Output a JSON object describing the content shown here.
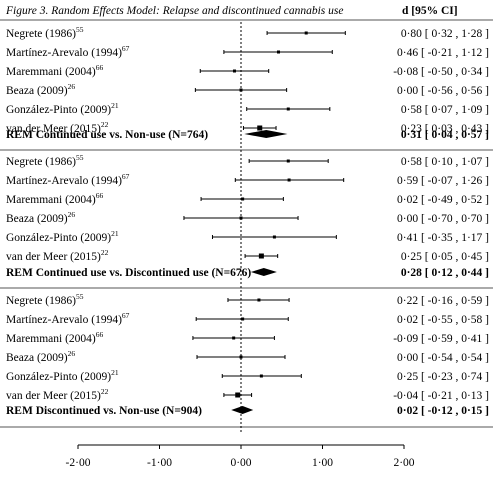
{
  "chart_data": {
    "type": "forest",
    "title": "Figure 3. Random Effects Model: Relapse and discontinued cannabis use",
    "column_header": "d [95% CI]",
    "xlim": [
      -2,
      2
    ],
    "x_ticks": [
      "-2·00",
      "-1·00",
      "0·00",
      "1·00",
      "2·00"
    ],
    "x_tick_values": [
      -2,
      -1,
      0,
      1,
      2
    ],
    "reference_line": 0,
    "groups": [
      {
        "studies": [
          {
            "name": "Negrete (1986)",
            "ref": "55",
            "d": 0.8,
            "lo": 0.32,
            "hi": 1.28,
            "ci_text": "0·80 [  0·32 ,  1·28 ]"
          },
          {
            "name": "Martínez-Arevalo (1994)",
            "ref": "67",
            "d": 0.46,
            "lo": -0.21,
            "hi": 1.12,
            "ci_text": "0·46 [ -0·21 ,  1·12 ]"
          },
          {
            "name": "Maremmani (2004)",
            "ref": "66",
            "d": -0.08,
            "lo": -0.5,
            "hi": 0.34,
            "ci_text": "-0·08 [ -0·50 ,  0·34 ]"
          },
          {
            "name": "Beaza (2009)",
            "ref": "26",
            "d": 0.0,
            "lo": -0.56,
            "hi": 0.56,
            "ci_text": "0·00 [ -0·56 ,  0·56 ]"
          },
          {
            "name": "González-Pinto (2009)",
            "ref": "21",
            "d": 0.58,
            "lo": 0.07,
            "hi": 1.09,
            "ci_text": "0·58 [  0·07 ,  1·09 ]"
          },
          {
            "name": "van der Meer (2015)",
            "ref": "22",
            "d": 0.23,
            "lo": 0.03,
            "hi": 0.43,
            "ci_text": "0·23 [  0·03 ,  0·43 ]"
          }
        ],
        "summary": {
          "label": "REM Continued use vs. Non-use (N=764)",
          "d": 0.31,
          "lo": 0.04,
          "hi": 0.57,
          "ci_text": "0·31 [  0·04 ,  0·57 ]"
        }
      },
      {
        "studies": [
          {
            "name": "Negrete (1986)",
            "ref": "55",
            "d": 0.58,
            "lo": 0.1,
            "hi": 1.07,
            "ci_text": "0·58 [  0·10 ,  1·07 ]"
          },
          {
            "name": "Martínez-Arevalo (1994)",
            "ref": "67",
            "d": 0.59,
            "lo": -0.07,
            "hi": 1.26,
            "ci_text": "0·59 [ -0·07 ,  1·26 ]"
          },
          {
            "name": "Maremmani (2004)",
            "ref": "66",
            "d": 0.02,
            "lo": -0.49,
            "hi": 0.52,
            "ci_text": "0·02 [ -0·49 ,  0·52 ]"
          },
          {
            "name": "Beaza (2009)",
            "ref": "26",
            "d": 0.0,
            "lo": -0.7,
            "hi": 0.7,
            "ci_text": "0·00 [ -0·70 ,  0·70 ]"
          },
          {
            "name": "González-Pinto (2009)",
            "ref": "21",
            "d": 0.41,
            "lo": -0.35,
            "hi": 1.17,
            "ci_text": "0·41 [ -0·35 ,  1·17 ]"
          },
          {
            "name": "van der Meer (2015)",
            "ref": "22",
            "d": 0.25,
            "lo": 0.05,
            "hi": 0.45,
            "ci_text": "0·25 [  0·05 ,  0·45 ]"
          }
        ],
        "summary": {
          "label": "REM Continued use vs. Discontinued use (N=676)",
          "d": 0.28,
          "lo": 0.12,
          "hi": 0.44,
          "ci_text": "0·28 [  0·12 ,  0·44 ]"
        }
      },
      {
        "studies": [
          {
            "name": "Negrete (1986)",
            "ref": "55",
            "d": 0.22,
            "lo": -0.16,
            "hi": 0.59,
            "ci_text": "0·22 [ -0·16 ,  0·59 ]"
          },
          {
            "name": "Martínez-Arevalo (1994)",
            "ref": "67",
            "d": 0.02,
            "lo": -0.55,
            "hi": 0.58,
            "ci_text": "0·02 [ -0·55 ,  0·58 ]"
          },
          {
            "name": "Maremmani (2004)",
            "ref": "66",
            "d": -0.09,
            "lo": -0.59,
            "hi": 0.41,
            "ci_text": "-0·09 [ -0·59 ,  0·41 ]"
          },
          {
            "name": "Beaza (2009)",
            "ref": "26",
            "d": 0.0,
            "lo": -0.54,
            "hi": 0.54,
            "ci_text": "0·00 [ -0·54 ,  0·54 ]"
          },
          {
            "name": "González-Pinto (2009)",
            "ref": "21",
            "d": 0.25,
            "lo": -0.23,
            "hi": 0.74,
            "ci_text": "0·25 [ -0·23 ,  0·74 ]"
          },
          {
            "name": "van der Meer (2015)",
            "ref": "22",
            "d": -0.04,
            "lo": -0.21,
            "hi": 0.13,
            "ci_text": "-0·04 [ -0·21 ,  0·13 ]"
          }
        ],
        "summary": {
          "label": "REM Discontinued vs. Non-use (N=904)",
          "d": 0.02,
          "lo": -0.12,
          "hi": 0.15,
          "ci_text": "0·02 [ -0·12 ,  0·15 ]"
        }
      }
    ]
  }
}
